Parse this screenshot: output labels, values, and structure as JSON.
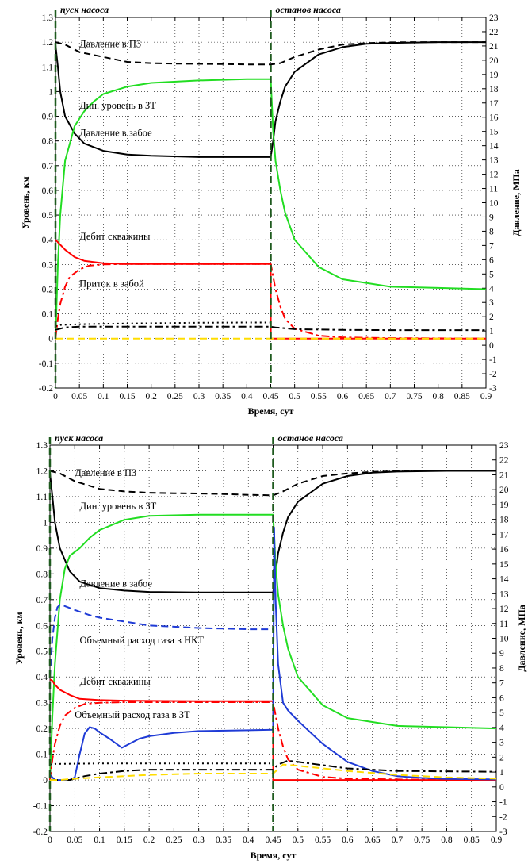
{
  "chart_data": [
    {
      "type": "line",
      "xlabel": "Время, сут",
      "ylabel_left": "Уровень, км",
      "ylabel_right": "Давление, МПа",
      "xlim": [
        0,
        0.9
      ],
      "ylim_left": [
        -0.2,
        1.3
      ],
      "ylim_right": [
        -3,
        23
      ],
      "grid": true,
      "x_ticks": [
        "0",
        "0.05",
        "0.1",
        "0.15",
        "0.2",
        "0.25",
        "0.3",
        "0.35",
        "0.4",
        "0.45",
        "0.5",
        "0.55",
        "0.6",
        "0.65",
        "0.7",
        "0.75",
        "0.8",
        "0.85",
        "0.9"
      ],
      "y_ticks_left": [
        "-0.2",
        "-0.1",
        "0",
        "0.1",
        "0.2",
        "0.3",
        "0.4",
        "0.5",
        "0.6",
        "0.7",
        "0.8",
        "0.9",
        "1",
        "1.1",
        "1.2",
        "1.3"
      ],
      "y_ticks_right": [
        "-3",
        "-2",
        "-1",
        "0",
        "1",
        "2",
        "3",
        "4",
        "5",
        "6",
        "7",
        "8",
        "9",
        "10",
        "11",
        "12",
        "13",
        "14",
        "15",
        "16",
        "17",
        "18",
        "19",
        "20",
        "21",
        "22",
        "23"
      ],
      "events": [
        {
          "label": "пуск насоса",
          "x": 0.0
        },
        {
          "label": "останов насоса",
          "x": 0.45
        }
      ],
      "annotations": [
        {
          "text": "Давление в ПЗ",
          "x": 0.05,
          "y": 1.18
        },
        {
          "text": "Дин. уровень в ЗТ",
          "x": 0.05,
          "y": 0.93
        },
        {
          "text": "Давление в забое",
          "x": 0.05,
          "y": 0.82
        },
        {
          "text": "Дебит скважины",
          "x": 0.05,
          "y": 0.4
        },
        {
          "text": "Приток в забой",
          "x": 0.05,
          "y": 0.21
        }
      ],
      "series": [
        {
          "color": "#000000",
          "dash": "8,5",
          "x": [
            0,
            0.02,
            0.05,
            0.1,
            0.15,
            0.2,
            0.25,
            0.3,
            0.35,
            0.4,
            0.45,
            0.47,
            0.5,
            0.55,
            0.6,
            0.65,
            0.7,
            0.75,
            0.8,
            0.85,
            0.9
          ],
          "y": [
            1.2,
            1.19,
            1.16,
            1.14,
            1.12,
            1.115,
            1.113,
            1.112,
            1.111,
            1.11,
            1.11,
            1.115,
            1.14,
            1.17,
            1.19,
            1.196,
            1.199,
            1.2,
            1.2,
            1.2,
            1.2
          ]
        },
        {
          "color": "#000000",
          "dash": "",
          "x": [
            0,
            0.005,
            0.01,
            0.02,
            0.04,
            0.06,
            0.1,
            0.15,
            0.2,
            0.3,
            0.4,
            0.45,
            0.455,
            0.46,
            0.47,
            0.48,
            0.5,
            0.55,
            0.6,
            0.65,
            0.7,
            0.8,
            0.9
          ],
          "y": [
            1.19,
            1.1,
            1.0,
            0.9,
            0.83,
            0.79,
            0.76,
            0.745,
            0.74,
            0.735,
            0.735,
            0.735,
            0.8,
            0.88,
            0.96,
            1.02,
            1.08,
            1.15,
            1.18,
            1.193,
            1.197,
            1.2,
            1.2
          ]
        },
        {
          "color": "#22dd22",
          "dash": "",
          "x": [
            0,
            0.005,
            0.01,
            0.02,
            0.04,
            0.06,
            0.08,
            0.1,
            0.15,
            0.2,
            0.3,
            0.4,
            0.45,
            0.455,
            0.46,
            0.47,
            0.48,
            0.5,
            0.55,
            0.6,
            0.7,
            0.8,
            0.9
          ],
          "y": [
            0,
            0.3,
            0.5,
            0.72,
            0.86,
            0.92,
            0.96,
            0.99,
            1.02,
            1.035,
            1.045,
            1.05,
            1.05,
            0.84,
            0.72,
            0.6,
            0.51,
            0.4,
            0.29,
            0.24,
            0.21,
            0.205,
            0.2
          ]
        },
        {
          "color": "#ff0000",
          "dash": "",
          "x": [
            0,
            0.005,
            0.01,
            0.02,
            0.04,
            0.06,
            0.1,
            0.15,
            0.2,
            0.3,
            0.4,
            0.45,
            0.4501,
            0.5,
            0.6,
            0.9
          ],
          "y": [
            0.4,
            0.39,
            0.38,
            0.36,
            0.33,
            0.315,
            0.305,
            0.302,
            0.302,
            0.302,
            0.302,
            0.302,
            0.0,
            0.0,
            0.0,
            0.0
          ]
        },
        {
          "color": "#ff0000",
          "dash": "10,4,3,4",
          "x": [
            0,
            0.005,
            0.01,
            0.02,
            0.03,
            0.05,
            0.07,
            0.1,
            0.15,
            0.2,
            0.3,
            0.4,
            0.45,
            0.46,
            0.47,
            0.48,
            0.5,
            0.55,
            0.6,
            0.7,
            0.9
          ],
          "y": [
            0,
            0.08,
            0.14,
            0.21,
            0.25,
            0.28,
            0.295,
            0.3,
            0.302,
            0.302,
            0.302,
            0.302,
            0.302,
            0.2,
            0.13,
            0.08,
            0.04,
            0.012,
            0.005,
            0.002,
            0.0
          ]
        },
        {
          "color": "#000000",
          "dash": "2,4",
          "x": [
            0,
            0.01,
            0.05,
            0.1,
            0.2,
            0.3,
            0.4,
            0.45
          ],
          "y": [
            0.05,
            0.055,
            0.058,
            0.06,
            0.062,
            0.064,
            0.065,
            0.065
          ]
        },
        {
          "color": "#000000",
          "dash": "10,4,3,4",
          "x": [
            0,
            0.01,
            0.02,
            0.05,
            0.1,
            0.2,
            0.3,
            0.45,
            0.46,
            0.5,
            0.6,
            0.7,
            0.9
          ],
          "y": [
            0.035,
            0.04,
            0.045,
            0.048,
            0.048,
            0.048,
            0.048,
            0.048,
            0.045,
            0.038,
            0.035,
            0.034,
            0.034
          ]
        },
        {
          "color": "#ffdd00",
          "dash": "9,5",
          "x": [
            0,
            0.9
          ],
          "y": [
            0.0,
            0.0
          ]
        }
      ]
    },
    {
      "type": "line",
      "xlabel": "Время, сут",
      "ylabel_left": "Уровень, км",
      "ylabel_right": "Давление, МПа",
      "xlim": [
        0,
        0.9
      ],
      "ylim_left": [
        -0.2,
        1.3
      ],
      "ylim_right": [
        -3,
        23
      ],
      "grid": true,
      "x_ticks": [
        "0",
        "0.05",
        "0.1",
        "0.15",
        "0.2",
        "0.25",
        "0.3",
        "0.35",
        "0.4",
        "0.45",
        "0.5",
        "0.55",
        "0.6",
        "0.65",
        "0.7",
        "0.75",
        "0.8",
        "0.85",
        "0.9"
      ],
      "y_ticks_left": [
        "-0.2",
        "-0.1",
        "0",
        "0.1",
        "0.2",
        "0.3",
        "0.4",
        "0.5",
        "0.6",
        "0.7",
        "0.8",
        "0.9",
        "1",
        "1.1",
        "1.2",
        "1.3"
      ],
      "y_ticks_right": [
        "-3",
        "-2",
        "-1",
        "0",
        "1",
        "2",
        "3",
        "4",
        "5",
        "6",
        "7",
        "8",
        "9",
        "10",
        "11",
        "12",
        "13",
        "14",
        "15",
        "16",
        "17",
        "18",
        "19",
        "20",
        "21",
        "22",
        "23"
      ],
      "events": [
        {
          "label": "пуск насоса",
          "x": 0.0
        },
        {
          "label": "останов насоса",
          "x": 0.45
        }
      ],
      "annotations": [
        {
          "text": "Давление в ПЗ",
          "x": 0.05,
          "y": 1.18
        },
        {
          "text": "Дин. уровень в ЗТ",
          "x": 0.06,
          "y": 1.05
        },
        {
          "text": "Давление в забое",
          "x": 0.06,
          "y": 0.75
        },
        {
          "text": "Объемный расход газа в НКТ",
          "x": 0.06,
          "y": 0.53
        },
        {
          "text": "Дебит скважины",
          "x": 0.06,
          "y": 0.37
        },
        {
          "text": "Объемный расход газа в ЗТ",
          "x": 0.05,
          "y": 0.24
        }
      ],
      "series": [
        {
          "color": "#000000",
          "dash": "8,5",
          "x": [
            0,
            0.02,
            0.05,
            0.1,
            0.15,
            0.2,
            0.25,
            0.3,
            0.35,
            0.4,
            0.45,
            0.47,
            0.5,
            0.55,
            0.6,
            0.65,
            0.7,
            0.75,
            0.8,
            0.85,
            0.9
          ],
          "y": [
            1.2,
            1.19,
            1.16,
            1.13,
            1.12,
            1.115,
            1.113,
            1.112,
            1.11,
            1.107,
            1.105,
            1.12,
            1.15,
            1.18,
            1.19,
            1.196,
            1.199,
            1.2,
            1.2,
            1.2,
            1.2
          ]
        },
        {
          "color": "#000000",
          "dash": "",
          "x": [
            0,
            0.005,
            0.01,
            0.02,
            0.04,
            0.06,
            0.1,
            0.15,
            0.2,
            0.3,
            0.4,
            0.45,
            0.455,
            0.46,
            0.47,
            0.48,
            0.5,
            0.55,
            0.6,
            0.65,
            0.7,
            0.8,
            0.9
          ],
          "y": [
            1.19,
            1.1,
            1.0,
            0.9,
            0.81,
            0.77,
            0.745,
            0.735,
            0.73,
            0.728,
            0.728,
            0.728,
            0.8,
            0.88,
            0.96,
            1.02,
            1.08,
            1.15,
            1.18,
            1.193,
            1.197,
            1.2,
            1.2
          ]
        },
        {
          "color": "#22dd22",
          "dash": "",
          "x": [
            0,
            0.005,
            0.01,
            0.02,
            0.03,
            0.04,
            0.05,
            0.06,
            0.08,
            0.1,
            0.15,
            0.2,
            0.3,
            0.4,
            0.45,
            0.455,
            0.46,
            0.47,
            0.48,
            0.5,
            0.55,
            0.6,
            0.7,
            0.8,
            0.9
          ],
          "y": [
            0,
            0.25,
            0.45,
            0.7,
            0.82,
            0.87,
            0.885,
            0.9,
            0.94,
            0.97,
            1.01,
            1.025,
            1.03,
            1.03,
            1.03,
            0.84,
            0.72,
            0.6,
            0.51,
            0.4,
            0.29,
            0.24,
            0.21,
            0.205,
            0.2
          ]
        },
        {
          "color": "#1f3bd6",
          "dash": "9,5",
          "x": [
            0,
            0.005,
            0.01,
            0.015,
            0.02,
            0.03,
            0.05,
            0.08,
            0.1,
            0.15,
            0.2,
            0.3,
            0.4,
            0.45
          ],
          "y": [
            0.4,
            0.55,
            0.63,
            0.67,
            0.68,
            0.675,
            0.66,
            0.64,
            0.63,
            0.615,
            0.6,
            0.59,
            0.585,
            0.585
          ]
        },
        {
          "color": "#ff0000",
          "dash": "",
          "x": [
            0,
            0.005,
            0.01,
            0.02,
            0.04,
            0.06,
            0.1,
            0.15,
            0.2,
            0.3,
            0.4,
            0.45,
            0.4501,
            0.5,
            0.6,
            0.9
          ],
          "y": [
            0.39,
            0.385,
            0.37,
            0.35,
            0.33,
            0.315,
            0.31,
            0.308,
            0.307,
            0.306,
            0.306,
            0.306,
            0.0,
            0.0,
            0.0,
            0.0
          ]
        },
        {
          "color": "#ff0000",
          "dash": "10,4,3,4",
          "x": [
            0,
            0.005,
            0.01,
            0.02,
            0.03,
            0.05,
            0.07,
            0.1,
            0.15,
            0.2,
            0.3,
            0.4,
            0.45,
            0.46,
            0.47,
            0.48,
            0.5,
            0.55,
            0.6,
            0.7,
            0.9
          ],
          "y": [
            0,
            0.08,
            0.14,
            0.21,
            0.25,
            0.28,
            0.295,
            0.3,
            0.302,
            0.302,
            0.302,
            0.302,
            0.302,
            0.2,
            0.13,
            0.08,
            0.04,
            0.012,
            0.005,
            0.002,
            0.0
          ]
        },
        {
          "color": "#1f3bd6",
          "dash": "",
          "x": [
            0,
            0.01,
            0.02,
            0.04,
            0.05,
            0.06,
            0.07,
            0.08,
            0.09,
            0.1,
            0.12,
            0.145,
            0.16,
            0.18,
            0.2,
            0.25,
            0.3,
            0.4,
            0.45,
            0.452,
            0.455,
            0.46,
            0.47,
            0.48,
            0.5,
            0.55,
            0.6,
            0.65,
            0.7,
            0.75,
            0.8,
            0.9
          ],
          "y": [
            0.02,
            0.0,
            0.0,
            0.0,
            0.01,
            0.1,
            0.18,
            0.205,
            0.2,
            0.185,
            0.16,
            0.125,
            0.14,
            0.16,
            0.17,
            0.183,
            0.19,
            0.193,
            0.195,
            0.98,
            0.7,
            0.45,
            0.3,
            0.27,
            0.23,
            0.14,
            0.07,
            0.035,
            0.015,
            0.008,
            0.004,
            0.002
          ]
        },
        {
          "color": "#000000",
          "dash": "2,4",
          "x": [
            0,
            0.01,
            0.05,
            0.1,
            0.2,
            0.3,
            0.4,
            0.45
          ],
          "y": [
            0.06,
            0.062,
            0.063,
            0.064,
            0.064,
            0.064,
            0.064,
            0.064
          ]
        },
        {
          "color": "#000000",
          "dash": "10,4,3,4",
          "x": [
            0,
            0.02,
            0.04,
            0.05,
            0.07,
            0.1,
            0.15,
            0.2,
            0.3,
            0.45,
            0.46,
            0.48,
            0.5,
            0.6,
            0.7,
            0.9
          ],
          "y": [
            0.0,
            0.0,
            0.0,
            0.005,
            0.015,
            0.025,
            0.035,
            0.04,
            0.04,
            0.04,
            0.06,
            0.075,
            0.07,
            0.045,
            0.035,
            0.032
          ]
        },
        {
          "color": "#ffdd00",
          "dash": "9,5",
          "x": [
            0,
            0.02,
            0.05,
            0.1,
            0.15,
            0.2,
            0.3,
            0.45,
            0.47,
            0.5,
            0.6,
            0.7,
            0.8,
            0.9
          ],
          "y": [
            0.0,
            0.0,
            0.005,
            0.01,
            0.015,
            0.02,
            0.025,
            0.025,
            0.06,
            0.055,
            0.035,
            0.02,
            0.01,
            0.005
          ]
        }
      ]
    }
  ]
}
